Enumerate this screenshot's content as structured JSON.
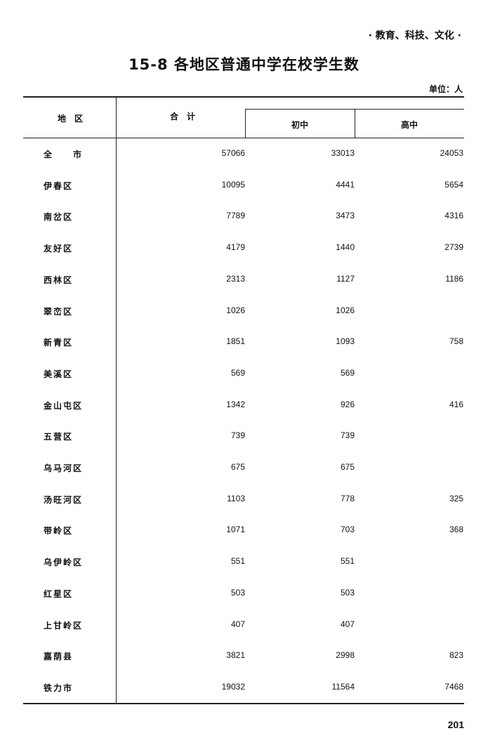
{
  "header": {
    "section": "· 教育、科技、文化 ·",
    "title": "15-8   各地区普通中学在校学生数",
    "unit": "单位：人"
  },
  "table": {
    "columns": {
      "region": "地　区",
      "total": "合　计",
      "junior": "初中",
      "senior": "高中"
    },
    "rows": [
      {
        "region": "全　　市",
        "total": "57066",
        "junior": "33013",
        "senior": "24053"
      },
      {
        "region": "伊春区",
        "total": "10095",
        "junior": "4441",
        "senior": "5654"
      },
      {
        "region": "南岔区",
        "total": "7789",
        "junior": "3473",
        "senior": "4316"
      },
      {
        "region": "友好区",
        "total": "4179",
        "junior": "1440",
        "senior": "2739"
      },
      {
        "region": "西林区",
        "total": "2313",
        "junior": "1127",
        "senior": "1186"
      },
      {
        "region": "翠峦区",
        "total": "1026",
        "junior": "1026",
        "senior": ""
      },
      {
        "region": "新青区",
        "total": "1851",
        "junior": "1093",
        "senior": "758"
      },
      {
        "region": "美溪区",
        "total": "569",
        "junior": "569",
        "senior": ""
      },
      {
        "region": "金山屯区",
        "total": "1342",
        "junior": "926",
        "senior": "416"
      },
      {
        "region": "五营区",
        "total": "739",
        "junior": "739",
        "senior": ""
      },
      {
        "region": "乌马河区",
        "total": "675",
        "junior": "675",
        "senior": ""
      },
      {
        "region": "汤旺河区",
        "total": "1103",
        "junior": "778",
        "senior": "325"
      },
      {
        "region": "带岭区",
        "total": "1071",
        "junior": "703",
        "senior": "368"
      },
      {
        "region": "乌伊岭区",
        "total": "551",
        "junior": "551",
        "senior": ""
      },
      {
        "region": "红星区",
        "total": "503",
        "junior": "503",
        "senior": ""
      },
      {
        "region": "上甘岭区",
        "total": "407",
        "junior": "407",
        "senior": ""
      },
      {
        "region": "嘉荫县",
        "total": "3821",
        "junior": "2998",
        "senior": "823"
      },
      {
        "region": "铁力市",
        "total": "19032",
        "junior": "11564",
        "senior": "7468"
      }
    ]
  },
  "footer": {
    "page_number": "201"
  }
}
